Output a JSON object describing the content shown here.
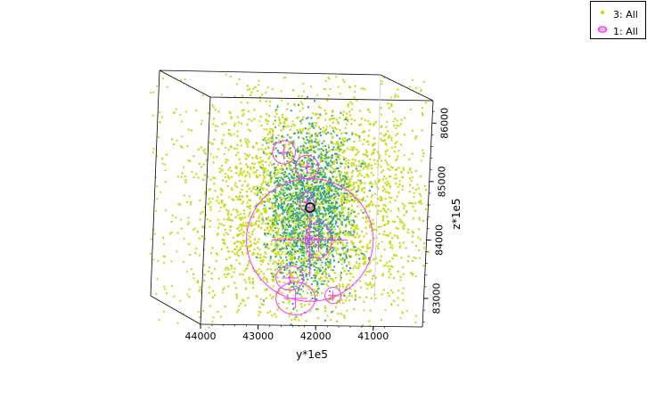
{
  "chart_data": {
    "type": "scatter",
    "dimensions": 3,
    "xlabel": "",
    "ylabel": "y*1e5",
    "zlabel": "z*1e5",
    "y_ticks": [
      "44000",
      "43000",
      "42000",
      "41000"
    ],
    "y_range": [
      40800,
      44000
    ],
    "z_ticks": [
      "83000",
      "84000",
      "85000",
      "86000"
    ],
    "z_range": [
      82500,
      86200
    ],
    "legend_placement": "top-right",
    "series": [
      {
        "name": "3: All",
        "marker": "point",
        "color": "#c8dc1e",
        "density_core_color": "#2aa09a"
      },
      {
        "name": "1: All",
        "marker": "ellipse",
        "color": "#ff33ff"
      }
    ],
    "ellipses": [
      {
        "y": 42100,
        "z": 84000,
        "ry": 1100,
        "rz": 1050
      },
      {
        "y": 42550,
        "z": 85500,
        "ry": 200,
        "rz": 200
      },
      {
        "y": 42150,
        "z": 85250,
        "ry": 200,
        "rz": 200
      },
      {
        "y": 42150,
        "z": 84650,
        "ry": 120,
        "rz": 170
      },
      {
        "y": 41950,
        "z": 84000,
        "ry": 230,
        "rz": 310
      },
      {
        "y": 42100,
        "z": 84000,
        "ry": 80,
        "rz": 80
      },
      {
        "y": 42450,
        "z": 83350,
        "ry": 240,
        "rz": 210
      },
      {
        "y": 42350,
        "z": 83000,
        "ry": 340,
        "rz": 280
      },
      {
        "y": 41700,
        "z": 83050,
        "ry": 140,
        "rz": 140
      }
    ],
    "grid": false,
    "box": true
  }
}
